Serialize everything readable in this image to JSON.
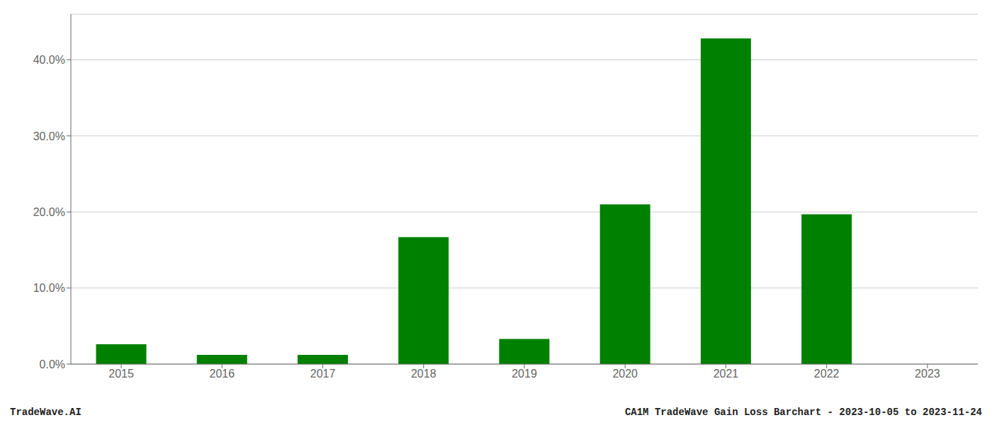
{
  "chart_data": {
    "type": "bar",
    "categories": [
      "2015",
      "2016",
      "2017",
      "2018",
      "2019",
      "2020",
      "2021",
      "2022",
      "2023"
    ],
    "values": [
      0.026,
      0.012,
      0.012,
      0.167,
      0.033,
      0.21,
      0.428,
      0.197,
      0.0
    ],
    "color": "#008000",
    "ylim": [
      0,
      0.46
    ],
    "yticks": [
      {
        "value": 0.0,
        "label": "0.0%"
      },
      {
        "value": 0.1,
        "label": "10.0%"
      },
      {
        "value": 0.2,
        "label": "20.0%"
      },
      {
        "value": 0.3,
        "label": "30.0%"
      },
      {
        "value": 0.4,
        "label": "40.0%"
      }
    ],
    "grid": true,
    "annotations": [
      "TradeWave.AI",
      "CA1M TradeWave Gain Loss Barchart - 2023-10-05 to 2023-11-24"
    ]
  }
}
